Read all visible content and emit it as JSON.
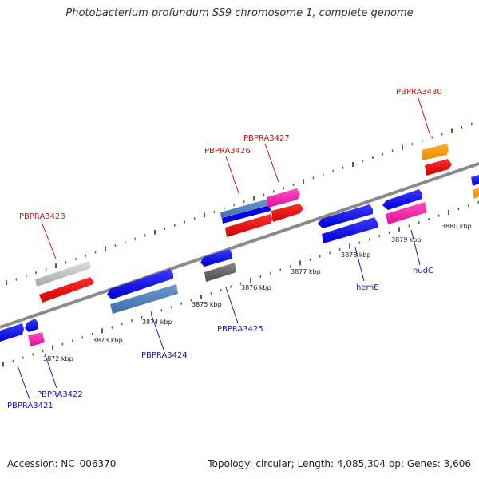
{
  "title": "Photobacterium profundum SS9 chromosome 1, complete genome",
  "footer": {
    "accession": "Accession: NC_006370",
    "summary": "Topology: circular; Length: 4,085,304 bp; Genes: 3,606"
  },
  "colors": {
    "backbone": "#8a8a8a",
    "tick": "#2e7d2e",
    "label_top": "#cc1111",
    "label_bottom": "#1a1aaa",
    "scale_text": "#222222"
  },
  "scale_labels": [
    "3872 kbp",
    "3873 kbp",
    "3874 kbp",
    "3875 kbp",
    "3876 kbp",
    "3877 kbp",
    "3878 kbp",
    "3879 kbp",
    "3880 kbp"
  ],
  "genes_top": [
    {
      "label": "PBPRA3423"
    },
    {
      "label": "PBPRA3426"
    },
    {
      "label": "PBPRA3427"
    },
    {
      "label": "PBPRA3430"
    }
  ],
  "genes_bottom": [
    {
      "label": "PBPRA3421"
    },
    {
      "label": "PBPRA3422"
    },
    {
      "label": "PBPRA3424"
    },
    {
      "label": "PBPRA3425"
    },
    {
      "label": "hemE"
    },
    {
      "label": "nudC"
    }
  ]
}
